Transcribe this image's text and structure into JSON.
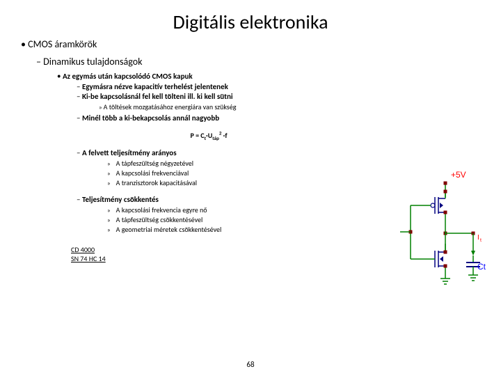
{
  "title": "Digitális elektronika",
  "bullets": {
    "l1": "CMOS áramkörök",
    "l2": "Dinamikus tulajdonságok",
    "l3": "Az egymás után kapcsolódó CMOS kapuk",
    "l4a": "Egymásra nézve kapacitív terhelést jelentenek",
    "l4b": "Ki-be kapcsolásnál fel kell tölteni ill. ki kell sütni",
    "l5a": "A töltések mozgatásához energiára van szükség",
    "l4c": "Minél több a ki-bekapcsolás annál nagyobb",
    "l4d": "A felvett teljesítmény arányos",
    "l5d1": "A tápfeszültség négyzetével",
    "l5d2": "A kapcsolási frekvenciával",
    "l5d3": "A tranzisztorok kapacitásával",
    "l4e": "Teljesítmény csökkentés",
    "l5e1": "A kapcsolási frekvencia egyre nő",
    "l5e2": "A tápfeszültség csökkentésével",
    "l5e3": "A geometriai méretek csökkentésével"
  },
  "formula": {
    "p": "P = C",
    "t": "t",
    "dot1": "·U",
    "tap": "táp",
    "sq": "2",
    "dot2": " ·f"
  },
  "links": {
    "a": "CD 4000",
    "b": "SN 74 HC 14"
  },
  "pagenum": "68",
  "circuit": {
    "vdd": "+5V",
    "it": "I",
    "it_sub": "t",
    "ct": "Ct",
    "colors": {
      "wire": "#008000",
      "mosfet": "#000080",
      "cap": "#000080",
      "node": "#800000",
      "vtext": "#ff0000",
      "ctext": "#0000ff",
      "itext": "#ff0000"
    }
  }
}
